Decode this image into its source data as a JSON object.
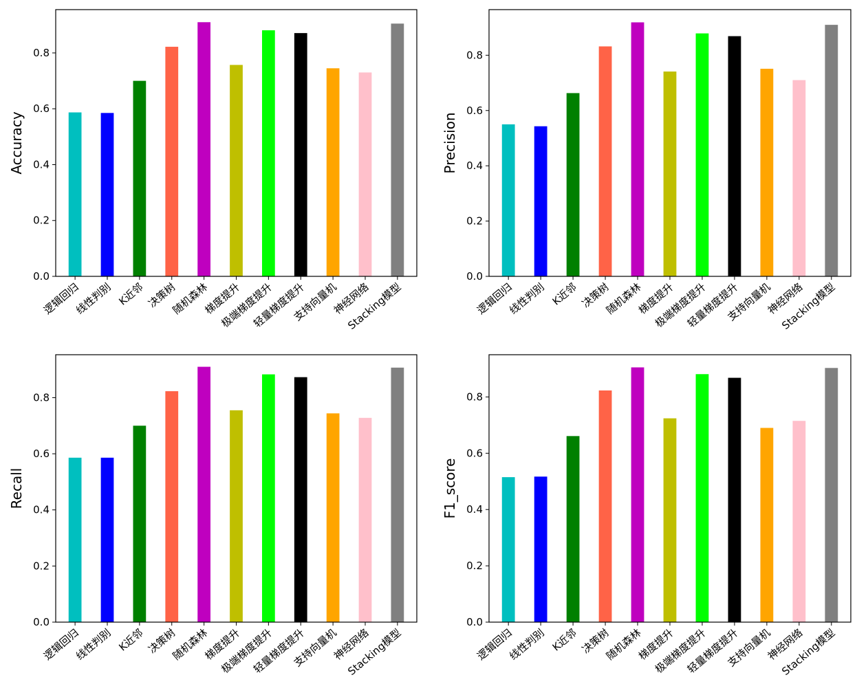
{
  "chart_data": [
    {
      "type": "bar",
      "ylabel": "Accuracy",
      "categories": [
        "逻辑回归",
        "线性判别",
        "K近邻",
        "决策树",
        "随机森林",
        "梯度提升",
        "极端梯度提升",
        "轻量梯度提升",
        "支持向量机",
        "神经网络",
        "Stacking模型"
      ],
      "values": [
        0.587,
        0.585,
        0.7,
        0.822,
        0.91,
        0.757,
        0.881,
        0.871,
        0.745,
        0.73,
        0.905
      ],
      "ylim": [
        0,
        0.955
      ],
      "yticks": [
        "0.0",
        "0.2",
        "0.4",
        "0.6",
        "0.8"
      ],
      "grid": false
    },
    {
      "type": "bar",
      "ylabel": "Precision",
      "categories": [
        "逻辑回归",
        "线性判别",
        "K近邻",
        "决策树",
        "随机森林",
        "梯度提升",
        "极端梯度提升",
        "轻量梯度提升",
        "支持向量机",
        "神经网络",
        "Stacking模型"
      ],
      "values": [
        0.55,
        0.543,
        0.663,
        0.832,
        0.919,
        0.741,
        0.879,
        0.869,
        0.751,
        0.71,
        0.91
      ],
      "ylim": [
        0,
        0.965
      ],
      "yticks": [
        "0.0",
        "0.2",
        "0.4",
        "0.6",
        "0.8"
      ],
      "grid": false
    },
    {
      "type": "bar",
      "ylabel": "Recall",
      "categories": [
        "逻辑回归",
        "线性判别",
        "K近邻",
        "决策树",
        "随机森林",
        "梯度提升",
        "极端梯度提升",
        "轻量梯度提升",
        "支持向量机",
        "神经网络",
        "Stacking模型"
      ],
      "values": [
        0.586,
        0.586,
        0.7,
        0.823,
        0.91,
        0.755,
        0.883,
        0.873,
        0.744,
        0.728,
        0.907
      ],
      "ylim": [
        0,
        0.953
      ],
      "yticks": [
        "0.0",
        "0.2",
        "0.4",
        "0.6",
        "0.8"
      ],
      "grid": false
    },
    {
      "type": "bar",
      "ylabel": "F1_score",
      "categories": [
        "逻辑回归",
        "线性判别",
        "K近邻",
        "决策树",
        "随机森林",
        "梯度提升",
        "极端梯度提升",
        "轻量梯度提升",
        "支持向量机",
        "神经网络",
        "Stacking模型"
      ],
      "values": [
        0.515,
        0.517,
        0.661,
        0.823,
        0.905,
        0.724,
        0.881,
        0.868,
        0.69,
        0.715,
        0.903
      ],
      "ylim": [
        0,
        0.95
      ],
      "yticks": [
        "0.0",
        "0.2",
        "0.4",
        "0.6",
        "0.8"
      ],
      "grid": false
    }
  ],
  "colors": [
    "#00BFBF",
    "#0000FF",
    "#008000",
    "#FF6347",
    "#BF00BF",
    "#BFBF00",
    "#00FF00",
    "#000000",
    "#FFA500",
    "#FFC0CB",
    "#808080"
  ]
}
